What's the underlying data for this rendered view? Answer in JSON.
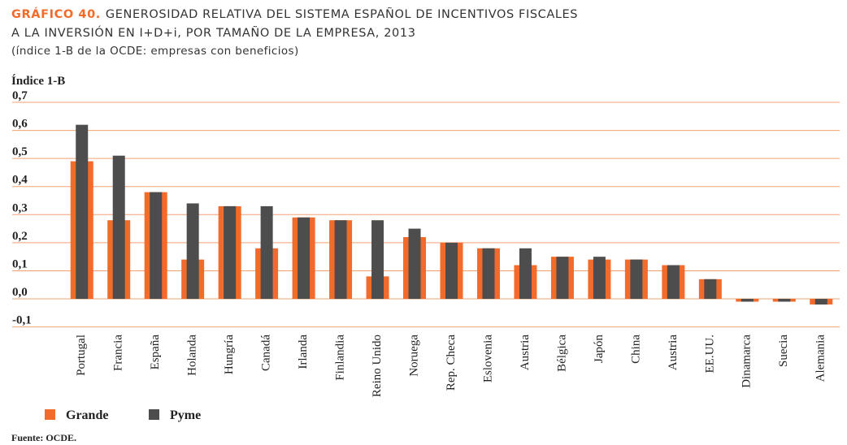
{
  "chart_data": {
    "type": "bar",
    "title_label": "GRÁFICO 40.",
    "title": [
      "GENEROSIDAD RELATIVA DEL SISTEMA ESPAÑOL DE INCENTIVOS FISCALES",
      "A LA INVERSIÓN EN I+D+i, POR TAMAÑO DE LA EMPRESA, 2013"
    ],
    "subtitle": "(índice 1-B de la OCDE: empresas con beneficios)",
    "ylabel": "Índice 1-B",
    "source": "Fuente: OCDE.",
    "categories": [
      "Portugal",
      "Francia",
      "España",
      "Holanda",
      "Hungría",
      "Canadá",
      "Irlanda",
      "Finlandia",
      "Reino Unido",
      "Noruega",
      "Rep. Checa",
      "Eslovenia",
      "Austria",
      "Bélgica",
      "Japón",
      "China",
      "Austria",
      "EE.UU.",
      "Dinamarca",
      "Suecia",
      "Alemania"
    ],
    "series": [
      {
        "name": "Grande",
        "color": "#f26b2a",
        "values": [
          0.49,
          0.28,
          0.38,
          0.14,
          0.33,
          0.18,
          0.29,
          0.28,
          0.08,
          0.22,
          0.2,
          0.18,
          0.12,
          0.15,
          0.14,
          0.14,
          0.12,
          0.07,
          -0.01,
          -0.01,
          -0.02
        ]
      },
      {
        "name": "Pyme",
        "color": "#4d4d4d",
        "values": [
          0.62,
          0.51,
          0.38,
          0.34,
          0.33,
          0.33,
          0.29,
          0.28,
          0.28,
          0.25,
          0.2,
          0.18,
          0.18,
          0.15,
          0.15,
          0.14,
          0.12,
          0.07,
          -0.01,
          -0.01,
          -0.02
        ]
      }
    ],
    "ylim": [
      -0.1,
      0.7
    ],
    "yticks": [
      {
        "value": 0.7,
        "label": "0,7"
      },
      {
        "value": 0.6,
        "label": "0,6"
      },
      {
        "value": 0.5,
        "label": "0,5"
      },
      {
        "value": 0.4,
        "label": "0,4"
      },
      {
        "value": 0.3,
        "label": "0,3"
      },
      {
        "value": 0.2,
        "label": "0,2"
      },
      {
        "value": 0.1,
        "label": "0,1"
      },
      {
        "value": 0.0,
        "label": "0,0"
      },
      {
        "value": -0.1,
        "label": "-0,1"
      }
    ],
    "grid": true
  }
}
